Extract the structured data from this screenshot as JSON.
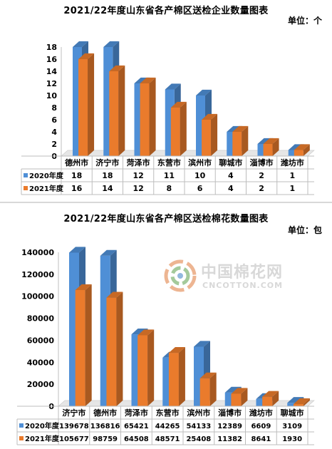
{
  "chart_data": [
    {
      "type": "bar",
      "title": "2021/22年度山东省各产棉区送检企业数量图表",
      "unit_label": "单位：个",
      "categories": [
        "德州市",
        "济宁市",
        "菏泽市",
        "东营市",
        "滨州市",
        "聊城市",
        "淄博市",
        "潍坊市"
      ],
      "series": [
        {
          "name": "2020年度",
          "values": [
            18,
            18,
            12,
            11,
            10,
            4,
            2,
            1
          ],
          "color": "#4f8fd6"
        },
        {
          "name": "2021年度",
          "values": [
            16,
            14,
            12,
            8,
            6,
            4,
            2,
            1
          ],
          "color": "#ea7b2c"
        }
      ],
      "ylim": [
        0,
        18
      ],
      "yticks": [
        0,
        2,
        4,
        6,
        8,
        10,
        12,
        14,
        16,
        18
      ],
      "legend": "data-table",
      "grid": false
    },
    {
      "type": "bar",
      "title": "2021/22年度山东省各产棉区送检棉花数量图表",
      "unit_label": "单位：包",
      "categories": [
        "济宁市",
        "德州市",
        "菏泽市",
        "东营市",
        "滨州市",
        "淄博市",
        "潍坊市",
        "聊城市"
      ],
      "series": [
        {
          "name": "2020年度",
          "values": [
            139678,
            136816,
            65421,
            44265,
            54133,
            12389,
            6609,
            3109
          ],
          "color": "#4f8fd6"
        },
        {
          "name": "2021年度",
          "values": [
            105677,
            98759,
            64508,
            48571,
            25408,
            11382,
            8641,
            1930
          ],
          "color": "#ea7b2c"
        }
      ],
      "ylim": [
        0,
        140000
      ],
      "yticks": [
        0,
        20000,
        40000,
        60000,
        80000,
        100000,
        120000,
        140000
      ],
      "legend": "data-table",
      "grid": false
    }
  ],
  "watermark": {
    "text_cn": "中国棉花网",
    "text_en": "CNCOTTON.COM",
    "icon": "cotton-logo-icon"
  }
}
